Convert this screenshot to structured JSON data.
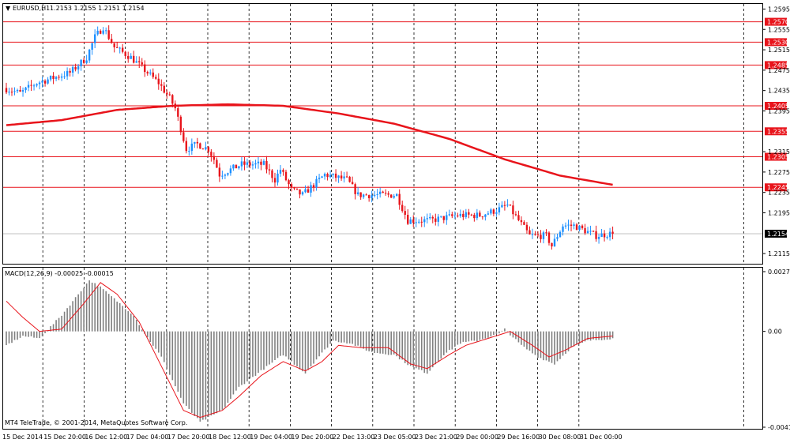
{
  "window": {
    "title": "EURUSD,H1"
  },
  "header": {
    "symbol": "EURUSD,H1",
    "ohlc": "1.2153 1.2155 1.2151 1.2154"
  },
  "colors": {
    "bull": "#1e90ff",
    "bear": "#e8141b",
    "ma": "#e8141b",
    "level": "#e8141b",
    "histogram": "#808080",
    "signal": "#e8141b",
    "grid": "#000000",
    "current_price_line": "#c0c0c0",
    "current_price_badge": "#000000"
  },
  "chart_data": [
    {
      "type": "candlestick",
      "symbol": "EURUSD",
      "timeframe": "H1",
      "title": "EURUSD,H1",
      "ylim": [
        1.2095,
        1.2605
      ],
      "grid": true,
      "x_ticks": [
        "15 Dec 2014",
        "15 Dec 20:00",
        "16 Dec 12:00",
        "17 Dec 04:00",
        "17 Dec 20:00",
        "18 Dec 12:00",
        "19 Dec 04:00",
        "19 Dec 20:00",
        "22 Dec 13:00",
        "23 Dec 05:00",
        "23 Dec 21:00",
        "29 Dec 00:00",
        "29 Dec 16:00",
        "30 Dec 08:00",
        "31 Dec 00:00"
      ],
      "y_ticks": [
        "1.2595",
        "1.2555",
        "1.2515",
        "1.2475",
        "1.2435",
        "1.2395",
        "1.2315",
        "1.2275",
        "1.2235",
        "1.2195",
        "1.2115"
      ],
      "price_levels": [
        "1.2570",
        "1.2530",
        "1.2485",
        "1.2405",
        "1.2355",
        "1.2305",
        "1.2245"
      ],
      "current_price": "1.2154",
      "price_anchors": [
        [
          0,
          1.244
        ],
        [
          6,
          1.243
        ],
        [
          12,
          1.245
        ],
        [
          18,
          1.246
        ],
        [
          24,
          1.247
        ],
        [
          30,
          1.25
        ],
        [
          33,
          1.254
        ],
        [
          36,
          1.256
        ],
        [
          40,
          1.252
        ],
        [
          46,
          1.25
        ],
        [
          52,
          1.247
        ],
        [
          56,
          1.245
        ],
        [
          60,
          1.242
        ],
        [
          62,
          1.24
        ],
        [
          64,
          1.236
        ],
        [
          66,
          1.232
        ],
        [
          70,
          1.233
        ],
        [
          74,
          1.232
        ],
        [
          76,
          1.23
        ],
        [
          78,
          1.227
        ],
        [
          86,
          1.229
        ],
        [
          94,
          1.229
        ],
        [
          98,
          1.226
        ],
        [
          100,
          1.228
        ],
        [
          104,
          1.224
        ],
        [
          108,
          1.223
        ],
        [
          112,
          1.225
        ],
        [
          116,
          1.227
        ],
        [
          124,
          1.226
        ],
        [
          128,
          1.223
        ],
        [
          134,
          1.223
        ],
        [
          142,
          1.223
        ],
        [
          146,
          1.218
        ],
        [
          154,
          1.218
        ],
        [
          164,
          1.219
        ],
        [
          172,
          1.219
        ],
        [
          178,
          1.22
        ],
        [
          182,
          1.221
        ],
        [
          186,
          1.218
        ],
        [
          190,
          1.215
        ],
        [
          196,
          1.215
        ],
        [
          198,
          1.213
        ],
        [
          202,
          1.217
        ],
        [
          206,
          1.217
        ],
        [
          210,
          1.216
        ],
        [
          214,
          1.215
        ],
        [
          219,
          1.2154
        ]
      ],
      "moving_average": [
        [
          0,
          1.2367
        ],
        [
          20,
          1.2377
        ],
        [
          40,
          1.2397
        ],
        [
          60,
          1.2405
        ],
        [
          80,
          1.2408
        ],
        [
          100,
          1.2405
        ],
        [
          120,
          1.239
        ],
        [
          140,
          1.237
        ],
        [
          160,
          1.234
        ],
        [
          180,
          1.23
        ],
        [
          200,
          1.2268
        ],
        [
          219,
          1.225
        ]
      ]
    },
    {
      "type": "macd",
      "title": "MACD(12,26,9) -0.00025 -0.00015",
      "params": [
        12,
        26,
        9
      ],
      "main_value": -0.00025,
      "signal_value": -0.00015,
      "ylim": [
        -0.00419,
        0.00274
      ],
      "y_ticks": [
        "0.00274",
        "0.00",
        "-0.00419"
      ],
      "histogram_anchors": [
        [
          0,
          -0.0006
        ],
        [
          6,
          -0.0002
        ],
        [
          12,
          -0.0003
        ],
        [
          20,
          0.0007
        ],
        [
          30,
          0.0022
        ],
        [
          34,
          0.0019
        ],
        [
          40,
          0.0013
        ],
        [
          46,
          0.0007
        ],
        [
          50,
          -0.0001
        ],
        [
          56,
          -0.0011
        ],
        [
          64,
          -0.0031
        ],
        [
          70,
          -0.0039
        ],
        [
          78,
          -0.0034
        ],
        [
          84,
          -0.0024
        ],
        [
          92,
          -0.0017
        ],
        [
          100,
          -0.001
        ],
        [
          108,
          -0.0018
        ],
        [
          112,
          -0.0012
        ],
        [
          118,
          -0.0004
        ],
        [
          124,
          -0.0005
        ],
        [
          132,
          -0.0009
        ],
        [
          140,
          -0.001
        ],
        [
          146,
          -0.0015
        ],
        [
          152,
          -0.0018
        ],
        [
          158,
          -0.001
        ],
        [
          164,
          -0.0005
        ],
        [
          170,
          -0.0004
        ],
        [
          178,
          -0.0001
        ],
        [
          180,
          0.0001
        ],
        [
          186,
          -0.0006
        ],
        [
          192,
          -0.0011
        ],
        [
          198,
          -0.0014
        ],
        [
          204,
          -0.0007
        ],
        [
          210,
          -0.0004
        ],
        [
          219,
          -0.0003
        ]
      ],
      "signal_anchors": [
        [
          0,
          0.0013
        ],
        [
          6,
          0.0006
        ],
        [
          12,
          0.0
        ],
        [
          20,
          0.0001
        ],
        [
          28,
          0.0012
        ],
        [
          34,
          0.0021
        ],
        [
          40,
          0.0016
        ],
        [
          48,
          0.0004
        ],
        [
          56,
          -0.0015
        ],
        [
          64,
          -0.0034
        ],
        [
          70,
          -0.0037
        ],
        [
          78,
          -0.0034
        ],
        [
          84,
          -0.0028
        ],
        [
          92,
          -0.0019
        ],
        [
          100,
          -0.0013
        ],
        [
          108,
          -0.0017
        ],
        [
          114,
          -0.0013
        ],
        [
          120,
          -0.0006
        ],
        [
          128,
          -0.0007
        ],
        [
          138,
          -0.0007
        ],
        [
          146,
          -0.0014
        ],
        [
          152,
          -0.0016
        ],
        [
          160,
          -0.001
        ],
        [
          166,
          -0.0006
        ],
        [
          174,
          -0.0003
        ],
        [
          182,
          0.0
        ],
        [
          190,
          -0.0006
        ],
        [
          196,
          -0.0011
        ],
        [
          202,
          -0.0008
        ],
        [
          210,
          -0.0003
        ],
        [
          219,
          -0.0002
        ]
      ]
    }
  ],
  "footer": {
    "copyright": "MT4 TeleTrade, © 2001-2014, MetaQuotes Software Corp."
  }
}
